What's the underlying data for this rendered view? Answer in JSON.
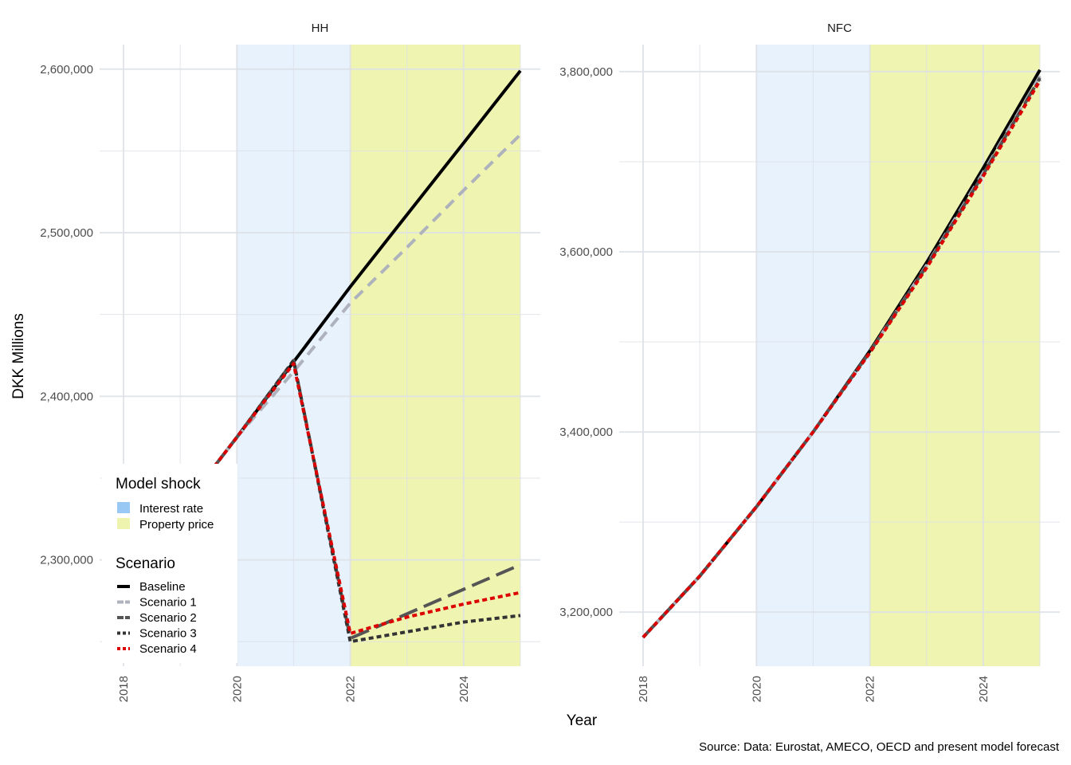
{
  "chart_data": {
    "type": "line",
    "xlabel": "Year",
    "ylabel": "DKK Millions",
    "caption": "Source: Data: Eurostat, AMECO, OECD and present model forecast",
    "legend": {
      "placement": "bottom-left",
      "shock_title": "Model shock",
      "shocks": [
        {
          "name": "Interest rate",
          "color": "#99c8f5",
          "from": 2020,
          "to": 2022
        },
        {
          "name": "Property price",
          "color": "#eef3ad",
          "from": 2022,
          "to": 2025
        }
      ],
      "scenario_title": "Scenario"
    },
    "series_styles": [
      {
        "name": "Baseline",
        "color": "#000000",
        "dash": "solid"
      },
      {
        "name": "Scenario 1",
        "color": "#aeb2bc",
        "dash": "dashed"
      },
      {
        "name": "Scenario 2",
        "color": "#555555",
        "dash": "longdash"
      },
      {
        "name": "Scenario 3",
        "color": "#333333",
        "dash": "dotted"
      },
      {
        "name": "Scenario 4",
        "color": "#dd0000",
        "dash": "dotted"
      }
    ],
    "panels": [
      {
        "strip": "HH",
        "xlim": [
          2018,
          2025
        ],
        "ylim": [
          2235000,
          2615000
        ],
        "x_ticks": [
          2018,
          2020,
          2022,
          2024
        ],
        "y_ticks": [
          2300000,
          2400000,
          2500000,
          2600000
        ],
        "y_tick_labels": [
          "2,300,000",
          "2,400,000",
          "2,500,000",
          "2,600,000"
        ],
        "x": [
          2019,
          2020,
          2021,
          2022,
          2023,
          2024,
          2025
        ],
        "series": [
          {
            "name": "Baseline",
            "values": [
              2330000,
              2375000,
              2421000,
              2467000,
              2511000,
              2555000,
              2599000
            ]
          },
          {
            "name": "Scenario 1",
            "values": [
              2330000,
              2375000,
              2415000,
              2457000,
              2491000,
              2526000,
              2560000
            ]
          },
          {
            "name": "Scenario 2",
            "values": [
              2330000,
              2375000,
              2422000,
              2252000,
              2267000,
              2282000,
              2297000
            ]
          },
          {
            "name": "Scenario 3",
            "values": [
              2330000,
              2375000,
              2422000,
              2250000,
              2256000,
              2262000,
              2266000
            ]
          },
          {
            "name": "Scenario 4",
            "values": [
              2330000,
              2375000,
              2420000,
              2255000,
              2265000,
              2273000,
              2280000
            ]
          }
        ]
      },
      {
        "strip": "NFC",
        "xlim": [
          2018,
          2025
        ],
        "ylim": [
          3140000,
          3830000
        ],
        "x_ticks": [
          2018,
          2020,
          2022,
          2024
        ],
        "y_ticks": [
          3200000,
          3400000,
          3600000,
          3800000
        ],
        "y_tick_labels": [
          "3,200,000",
          "3,400,000",
          "3,600,000",
          "3,800,000"
        ],
        "x": [
          2018,
          2019,
          2020,
          2021,
          2022,
          2023,
          2024,
          2025
        ],
        "series": [
          {
            "name": "Baseline",
            "values": [
              3172000,
              3240000,
              3317000,
              3400000,
              3490000,
              3588000,
              3693000,
              3802000
            ]
          },
          {
            "name": "Scenario 1",
            "values": [
              3172000,
              3240000,
              3317000,
              3400000,
              3489000,
              3585000,
              3688000,
              3795000
            ]
          },
          {
            "name": "Scenario 2",
            "values": [
              3172000,
              3240000,
              3317000,
              3400000,
              3489000,
              3584000,
              3686000,
              3793000
            ]
          },
          {
            "name": "Scenario 3",
            "values": [
              3172000,
              3240000,
              3317000,
              3400000,
              3488000,
              3583000,
              3685000,
              3791000
            ]
          },
          {
            "name": "Scenario 4",
            "values": [
              3172000,
              3240000,
              3317000,
              3400000,
              3488000,
              3582000,
              3684000,
              3790000
            ]
          }
        ]
      }
    ]
  }
}
